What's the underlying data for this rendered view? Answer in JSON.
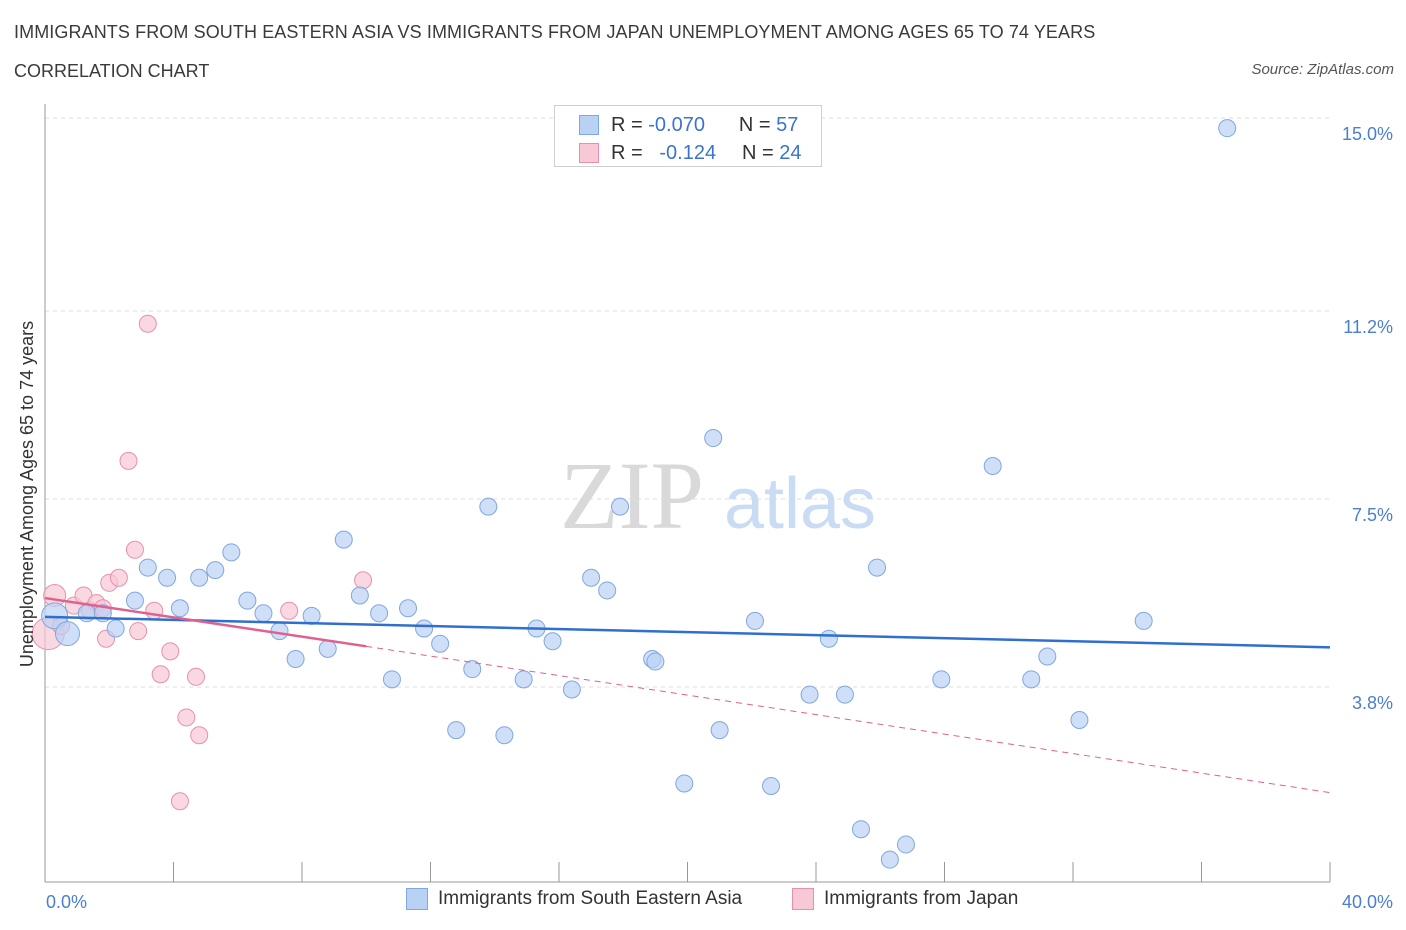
{
  "header": {
    "title": "IMMIGRANTS FROM SOUTH EASTERN ASIA VS IMMIGRANTS FROM JAPAN UNEMPLOYMENT AMONG AGES 65 TO 74 YEARS",
    "subtitle": "CORRELATION CHART",
    "source": "Source: ZipAtlas.com"
  },
  "legend": {
    "r_label": "R =",
    "n_label": "N =",
    "series1": {
      "r": "-0.070",
      "n": "57"
    },
    "series2": {
      "r": "-0.124",
      "n": "24"
    }
  },
  "watermark": {
    "zip": "ZIP",
    "atlas": "atlas"
  },
  "colors": {
    "blue_fill": "#b9d1f3",
    "blue_stroke": "#7fa8e0",
    "blue_line": "#2f6fce",
    "pink_fill": "#f8c8d6",
    "pink_stroke": "#e890ab",
    "pink_line": "#e0608e",
    "tick_text": "#4a7fd0",
    "grid": "#dcdcdc"
  },
  "chart_data": {
    "type": "scatter",
    "xlabel": "",
    "ylabel": "Unemployment Among Ages 65 to 74 years",
    "xlim": [
      0,
      40
    ],
    "ylim": [
      0,
      15
    ],
    "x_tick_labels": [
      "0.0%",
      "40.0%"
    ],
    "y_ticks": [
      3.8,
      7.5,
      11.2,
      15.0
    ],
    "y_tick_labels": [
      "3.8%",
      "7.5%",
      "11.2%",
      "15.0%"
    ],
    "grid": true,
    "legend_position": "bottom-center",
    "series": [
      {
        "name": "Immigrants from South Eastern Asia",
        "color": "#b9d1f3",
        "points": [
          [
            0.3,
            5.2
          ],
          [
            0.7,
            4.85
          ],
          [
            1.3,
            5.25
          ],
          [
            1.8,
            5.25
          ],
          [
            2.2,
            4.95
          ],
          [
            2.8,
            5.5
          ],
          [
            3.2,
            6.15
          ],
          [
            3.8,
            5.95
          ],
          [
            4.2,
            5.35
          ],
          [
            4.8,
            5.95
          ],
          [
            5.3,
            6.1
          ],
          [
            5.8,
            6.45
          ],
          [
            6.3,
            5.5
          ],
          [
            6.8,
            5.25
          ],
          [
            7.3,
            4.9
          ],
          [
            7.8,
            4.35
          ],
          [
            8.3,
            5.2
          ],
          [
            8.8,
            4.55
          ],
          [
            9.3,
            6.7
          ],
          [
            9.8,
            5.6
          ],
          [
            10.4,
            5.25
          ],
          [
            10.8,
            3.95
          ],
          [
            11.3,
            5.35
          ],
          [
            11.8,
            4.95
          ],
          [
            12.3,
            4.65
          ],
          [
            12.8,
            2.95
          ],
          [
            13.3,
            4.15
          ],
          [
            13.8,
            7.35
          ],
          [
            14.3,
            2.85
          ],
          [
            14.9,
            3.95
          ],
          [
            15.3,
            4.95
          ],
          [
            15.8,
            4.7
          ],
          [
            16.4,
            3.75
          ],
          [
            17.0,
            5.95
          ],
          [
            17.5,
            5.7
          ],
          [
            17.9,
            7.35
          ],
          [
            18.9,
            4.35
          ],
          [
            19.0,
            4.3
          ],
          [
            19.9,
            1.9
          ],
          [
            20.8,
            8.7
          ],
          [
            21.0,
            2.95
          ],
          [
            22.1,
            5.1
          ],
          [
            22.6,
            1.85
          ],
          [
            23.8,
            3.65
          ],
          [
            24.4,
            4.75
          ],
          [
            24.9,
            3.65
          ],
          [
            25.4,
            1.0
          ],
          [
            25.9,
            6.15
          ],
          [
            26.3,
            0.4
          ],
          [
            26.8,
            0.7
          ],
          [
            27.9,
            3.95
          ],
          [
            29.5,
            8.15
          ],
          [
            30.7,
            3.95
          ],
          [
            31.2,
            4.4
          ],
          [
            32.2,
            3.15
          ],
          [
            34.2,
            5.1
          ],
          [
            36.8,
            14.8
          ]
        ]
      },
      {
        "name": "Immigrants from Japan",
        "color": "#f8c8d6",
        "points": [
          [
            0.1,
            4.85
          ],
          [
            0.3,
            5.6
          ],
          [
            0.5,
            5.0
          ],
          [
            0.9,
            5.4
          ],
          [
            1.2,
            5.6
          ],
          [
            1.4,
            5.3
          ],
          [
            1.6,
            5.45
          ],
          [
            1.8,
            5.35
          ],
          [
            1.9,
            4.75
          ],
          [
            2.0,
            5.85
          ],
          [
            2.3,
            5.95
          ],
          [
            2.6,
            8.25
          ],
          [
            2.8,
            6.5
          ],
          [
            2.9,
            4.9
          ],
          [
            3.2,
            10.95
          ],
          [
            3.4,
            5.3
          ],
          [
            3.6,
            4.05
          ],
          [
            3.9,
            4.5
          ],
          [
            4.2,
            1.55
          ],
          [
            4.4,
            3.2
          ],
          [
            4.7,
            4.0
          ],
          [
            4.8,
            2.85
          ],
          [
            7.6,
            5.3
          ],
          [
            9.9,
            5.9
          ]
        ]
      }
    ],
    "trend_lines": [
      {
        "series": "Immigrants from South Eastern Asia",
        "x": [
          0,
          40
        ],
        "y": [
          5.18,
          4.58
        ],
        "style": "solid"
      },
      {
        "series": "Immigrants from Japan",
        "x": [
          0,
          10
        ],
        "y": [
          5.55,
          4.6
        ],
        "style": "solid"
      },
      {
        "series": "Immigrants from Japan",
        "x": [
          10,
          40
        ],
        "y": [
          4.6,
          1.72
        ],
        "style": "dashed"
      }
    ]
  }
}
